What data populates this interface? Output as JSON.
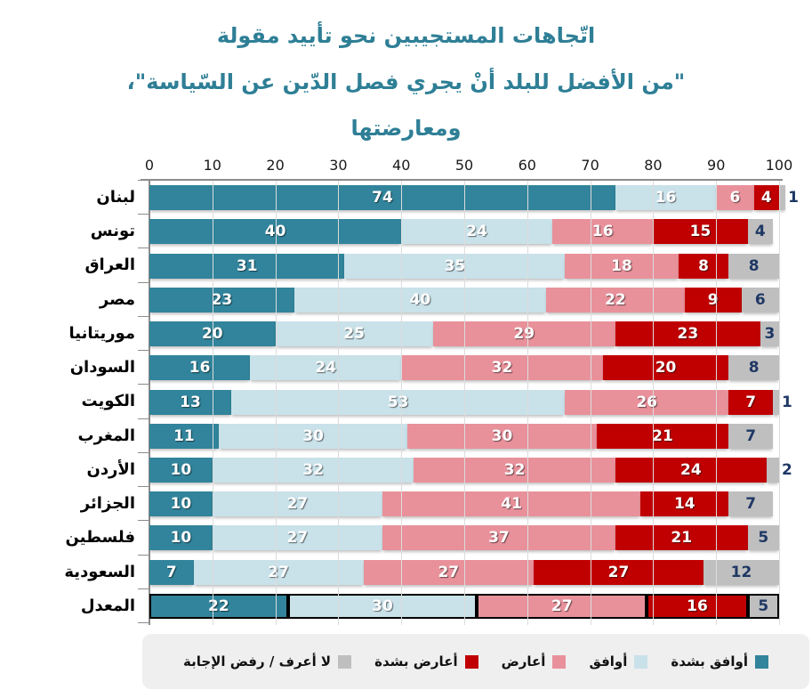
{
  "title": {
    "line1": "اتّجاهات المستجيبين نحو تأييد مقولة",
    "line2": "\"من الأفضل للبلد أنْ يجري فصل الدّين عن السّياسة\"،",
    "line3": "ومعارضتها",
    "color": "#2E7F96"
  },
  "chart_data": {
    "type": "bar",
    "orientation": "horizontal",
    "stacked": true,
    "grid": true,
    "legend_position": "bottom",
    "x_axis": {
      "min": 0,
      "max": 100,
      "tick_step": 10,
      "tick_labels": [
        "0",
        "10",
        "20",
        "30",
        "40",
        "50",
        "60",
        "70",
        "80",
        "90",
        "100"
      ]
    },
    "categories": [
      "لبنان",
      "تونس",
      "العراق",
      "مصر",
      "موريتانيا",
      "السودان",
      "الكويت",
      "المغرب",
      "الأردن",
      "الجزائر",
      "فلسطين",
      "السعودية",
      "المعدل"
    ],
    "average_category": "المعدل",
    "series": [
      {
        "name": "أوافق بشدة",
        "color": "#31849B",
        "values": [
          74,
          40,
          31,
          23,
          20,
          16,
          13,
          11,
          10,
          10,
          10,
          7,
          22
        ]
      },
      {
        "name": "أوافق",
        "color": "#C9E1E9",
        "values": [
          16,
          24,
          35,
          40,
          25,
          24,
          53,
          30,
          32,
          27,
          27,
          27,
          30
        ]
      },
      {
        "name": "أعارض",
        "color": "#E8919B",
        "values": [
          6,
          16,
          18,
          22,
          29,
          32,
          26,
          30,
          32,
          41,
          37,
          27,
          27
        ]
      },
      {
        "name": "أعارض بشدة",
        "color": "#C00000",
        "values": [
          4,
          15,
          8,
          9,
          23,
          20,
          7,
          21,
          24,
          14,
          21,
          27,
          16
        ]
      },
      {
        "name": "لا أعرف / رفض الإجابة",
        "color": "#BFBFBF",
        "values": [
          1,
          4,
          8,
          6,
          3,
          8,
          1,
          7,
          2,
          7,
          5,
          12,
          5
        ]
      }
    ],
    "value_label_outside_threshold": 2,
    "value_label_color_on_gray": "#1F3864"
  },
  "layout_colors": {
    "axis": "#8c8c8c",
    "gridline": "#dcdcdc",
    "legend_background": "#efefef"
  }
}
